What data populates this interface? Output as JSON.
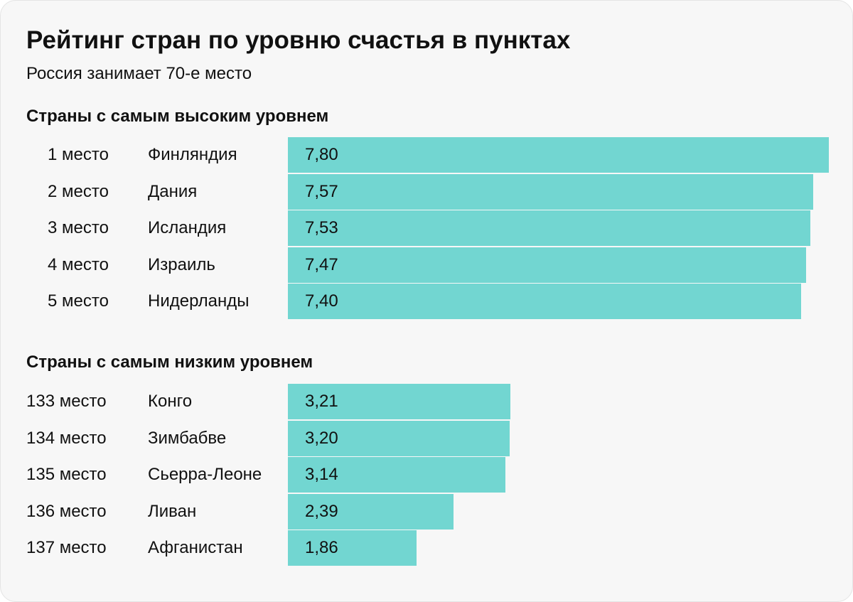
{
  "title": "Рейтинг стран по уровню счастья в пунктах",
  "subtitle": "Россия занимает 70-е место",
  "colors": {
    "bar": "#72d6d1",
    "background": "#f7f7f7",
    "text": "#111111"
  },
  "chart_data": [
    {
      "type": "bar",
      "orientation": "horizontal",
      "title": "Страны с самым высоким уровнем",
      "ranks": [
        "1 место",
        "2 место",
        "3 место",
        "4 место",
        "5 место"
      ],
      "categories": [
        "Финляндия",
        "Дания",
        "Исландия",
        "Израиль",
        "Нидерланды"
      ],
      "values": [
        7.8,
        7.57,
        7.53,
        7.47,
        7.4
      ],
      "value_labels": [
        "7,80",
        "7,57",
        "7,53",
        "7,47",
        "7,40"
      ],
      "xlim": [
        0,
        7.8
      ],
      "grid": false,
      "legend": "none"
    },
    {
      "type": "bar",
      "orientation": "horizontal",
      "title": "Страны с самым низким уровнем",
      "ranks": [
        "133 место",
        "134 место",
        "135 место",
        "136 место",
        "137 место"
      ],
      "categories": [
        "Конго",
        "Зимбабве",
        "Сьерра-Леоне",
        "Ливан",
        "Афганистан"
      ],
      "values": [
        3.21,
        3.2,
        3.14,
        2.39,
        1.86
      ],
      "value_labels": [
        "3,21",
        "3,20",
        "3,14",
        "2,39",
        "1,86"
      ],
      "xlim": [
        0,
        7.8
      ],
      "grid": false,
      "legend": "none"
    }
  ]
}
